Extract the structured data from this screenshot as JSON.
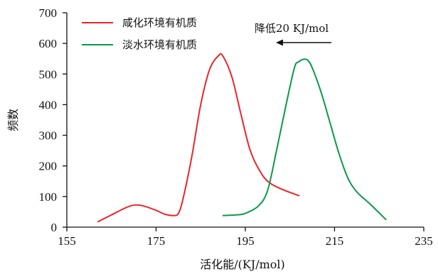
{
  "chart_data": {
    "type": "line",
    "title": "",
    "xlabel": "活化能/(KJ/mol)",
    "ylabel": "频数",
    "xlim": [
      155,
      235
    ],
    "ylim": [
      0,
      700
    ],
    "xticks": [
      155,
      175,
      195,
      215,
      235
    ],
    "yticks": [
      0,
      100,
      200,
      300,
      400,
      500,
      600,
      700
    ],
    "grid": false,
    "legend_position": "top-left",
    "series": [
      {
        "name": "咸化环境有机质",
        "color": "#e8262b",
        "x": [
          162,
          165,
          168,
          170,
          172,
          175,
          177,
          179,
          180,
          181,
          183,
          185,
          187,
          189,
          190,
          192,
          194,
          196,
          198,
          200,
          203,
          207
        ],
        "y": [
          18,
          40,
          62,
          72,
          70,
          55,
          42,
          38,
          45,
          90,
          230,
          400,
          515,
          560,
          558,
          490,
          370,
          255,
          190,
          150,
          125,
          103
        ]
      },
      {
        "name": "淡水环境有机质",
        "color": "#0a9b47",
        "x": [
          190,
          193,
          195,
          198,
          200,
          202,
          204,
          206,
          207,
          208,
          209,
          210,
          212,
          214,
          216,
          218,
          220,
          223,
          226.5
        ],
        "y": [
          38,
          40,
          45,
          70,
          120,
          250,
          390,
          520,
          540,
          548,
          545,
          520,
          440,
          340,
          240,
          160,
          115,
          75,
          25
        ]
      }
    ],
    "annotations": [
      {
        "text": "降低20 KJ/mol",
        "arrow": "left"
      }
    ]
  }
}
